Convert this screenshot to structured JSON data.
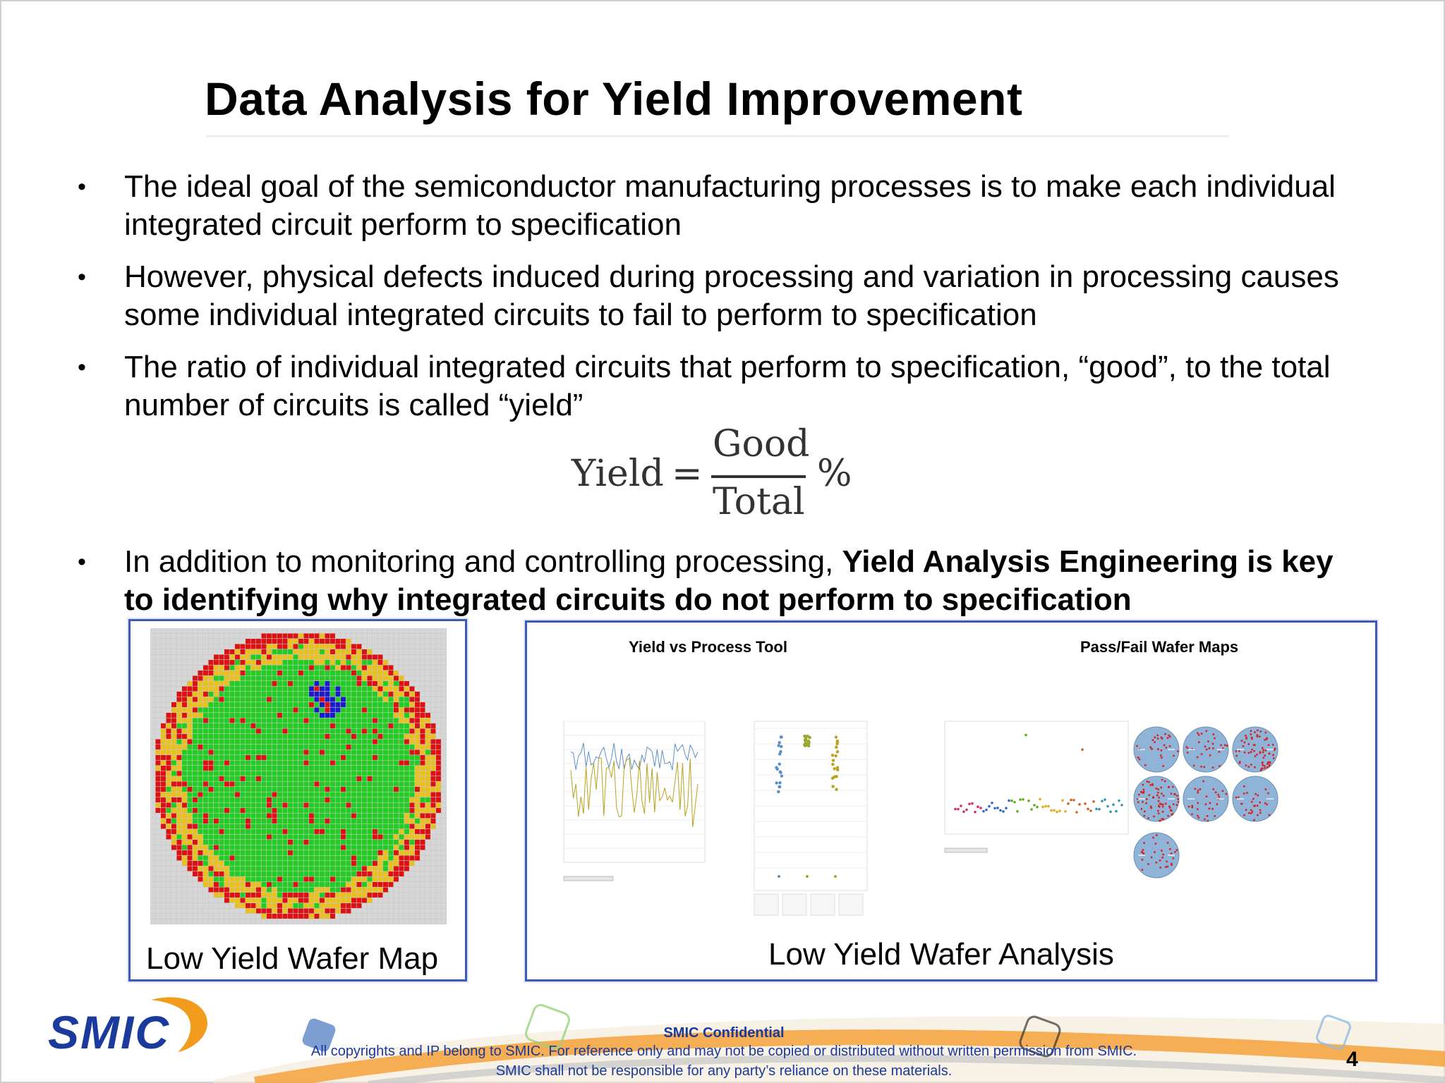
{
  "title": "Data Analysis for Yield Improvement",
  "bullets": [
    {
      "text": "The ideal goal of the semiconductor manufacturing processes is to make each individual integrated circuit perform to specification"
    },
    {
      "text": "However, physical defects induced during processing and variation in processing causes some individual integrated circuits to fail to perform to specification"
    },
    {
      "text": "The ratio of individual integrated circuits that perform to specification, “good”, to the total number of circuits is called “yield”"
    }
  ],
  "last_bullet": {
    "plain": "In addition to monitoring and controlling processing, ",
    "bold_part1": "Yield Analysis Engineering is key",
    "bold_part2": "to identifying why integrated circuits do not perform to specification"
  },
  "bullet_symbol": "•",
  "formula": {
    "lhs": "Yield",
    "eq": "=",
    "numerator": "Good",
    "denominator": "Total",
    "unit": "%"
  },
  "left_panel": {
    "caption": "Low Yield Wafer Map"
  },
  "right_panel": {
    "caption": "Low Yield Wafer Analysis",
    "heading_left": "Yield vs Process Tool",
    "heading_right": "Pass/Fail Wafer Maps"
  },
  "footer": {
    "confidential": "SMIC Confidential",
    "line1": "All copyrights and IP belong to SMIC. For reference only and may not be copied or distributed without written permission from SMIC.",
    "line2": "SMIC shall not be responsible for any party’s reliance on these materials.",
    "page": "4",
    "logo_text": "SMIC"
  },
  "colors": {
    "wafer_good": "#22cc22",
    "wafer_fail": "#dd1111",
    "wafer_edge": "#e8c020",
    "wafer_cluster": "#1a1acc",
    "panel_border": "#3b5bb5",
    "footer_text": "#1a3a9c",
    "logo_blue": "#1a3a9c",
    "logo_orange": "#f29b1d"
  }
}
